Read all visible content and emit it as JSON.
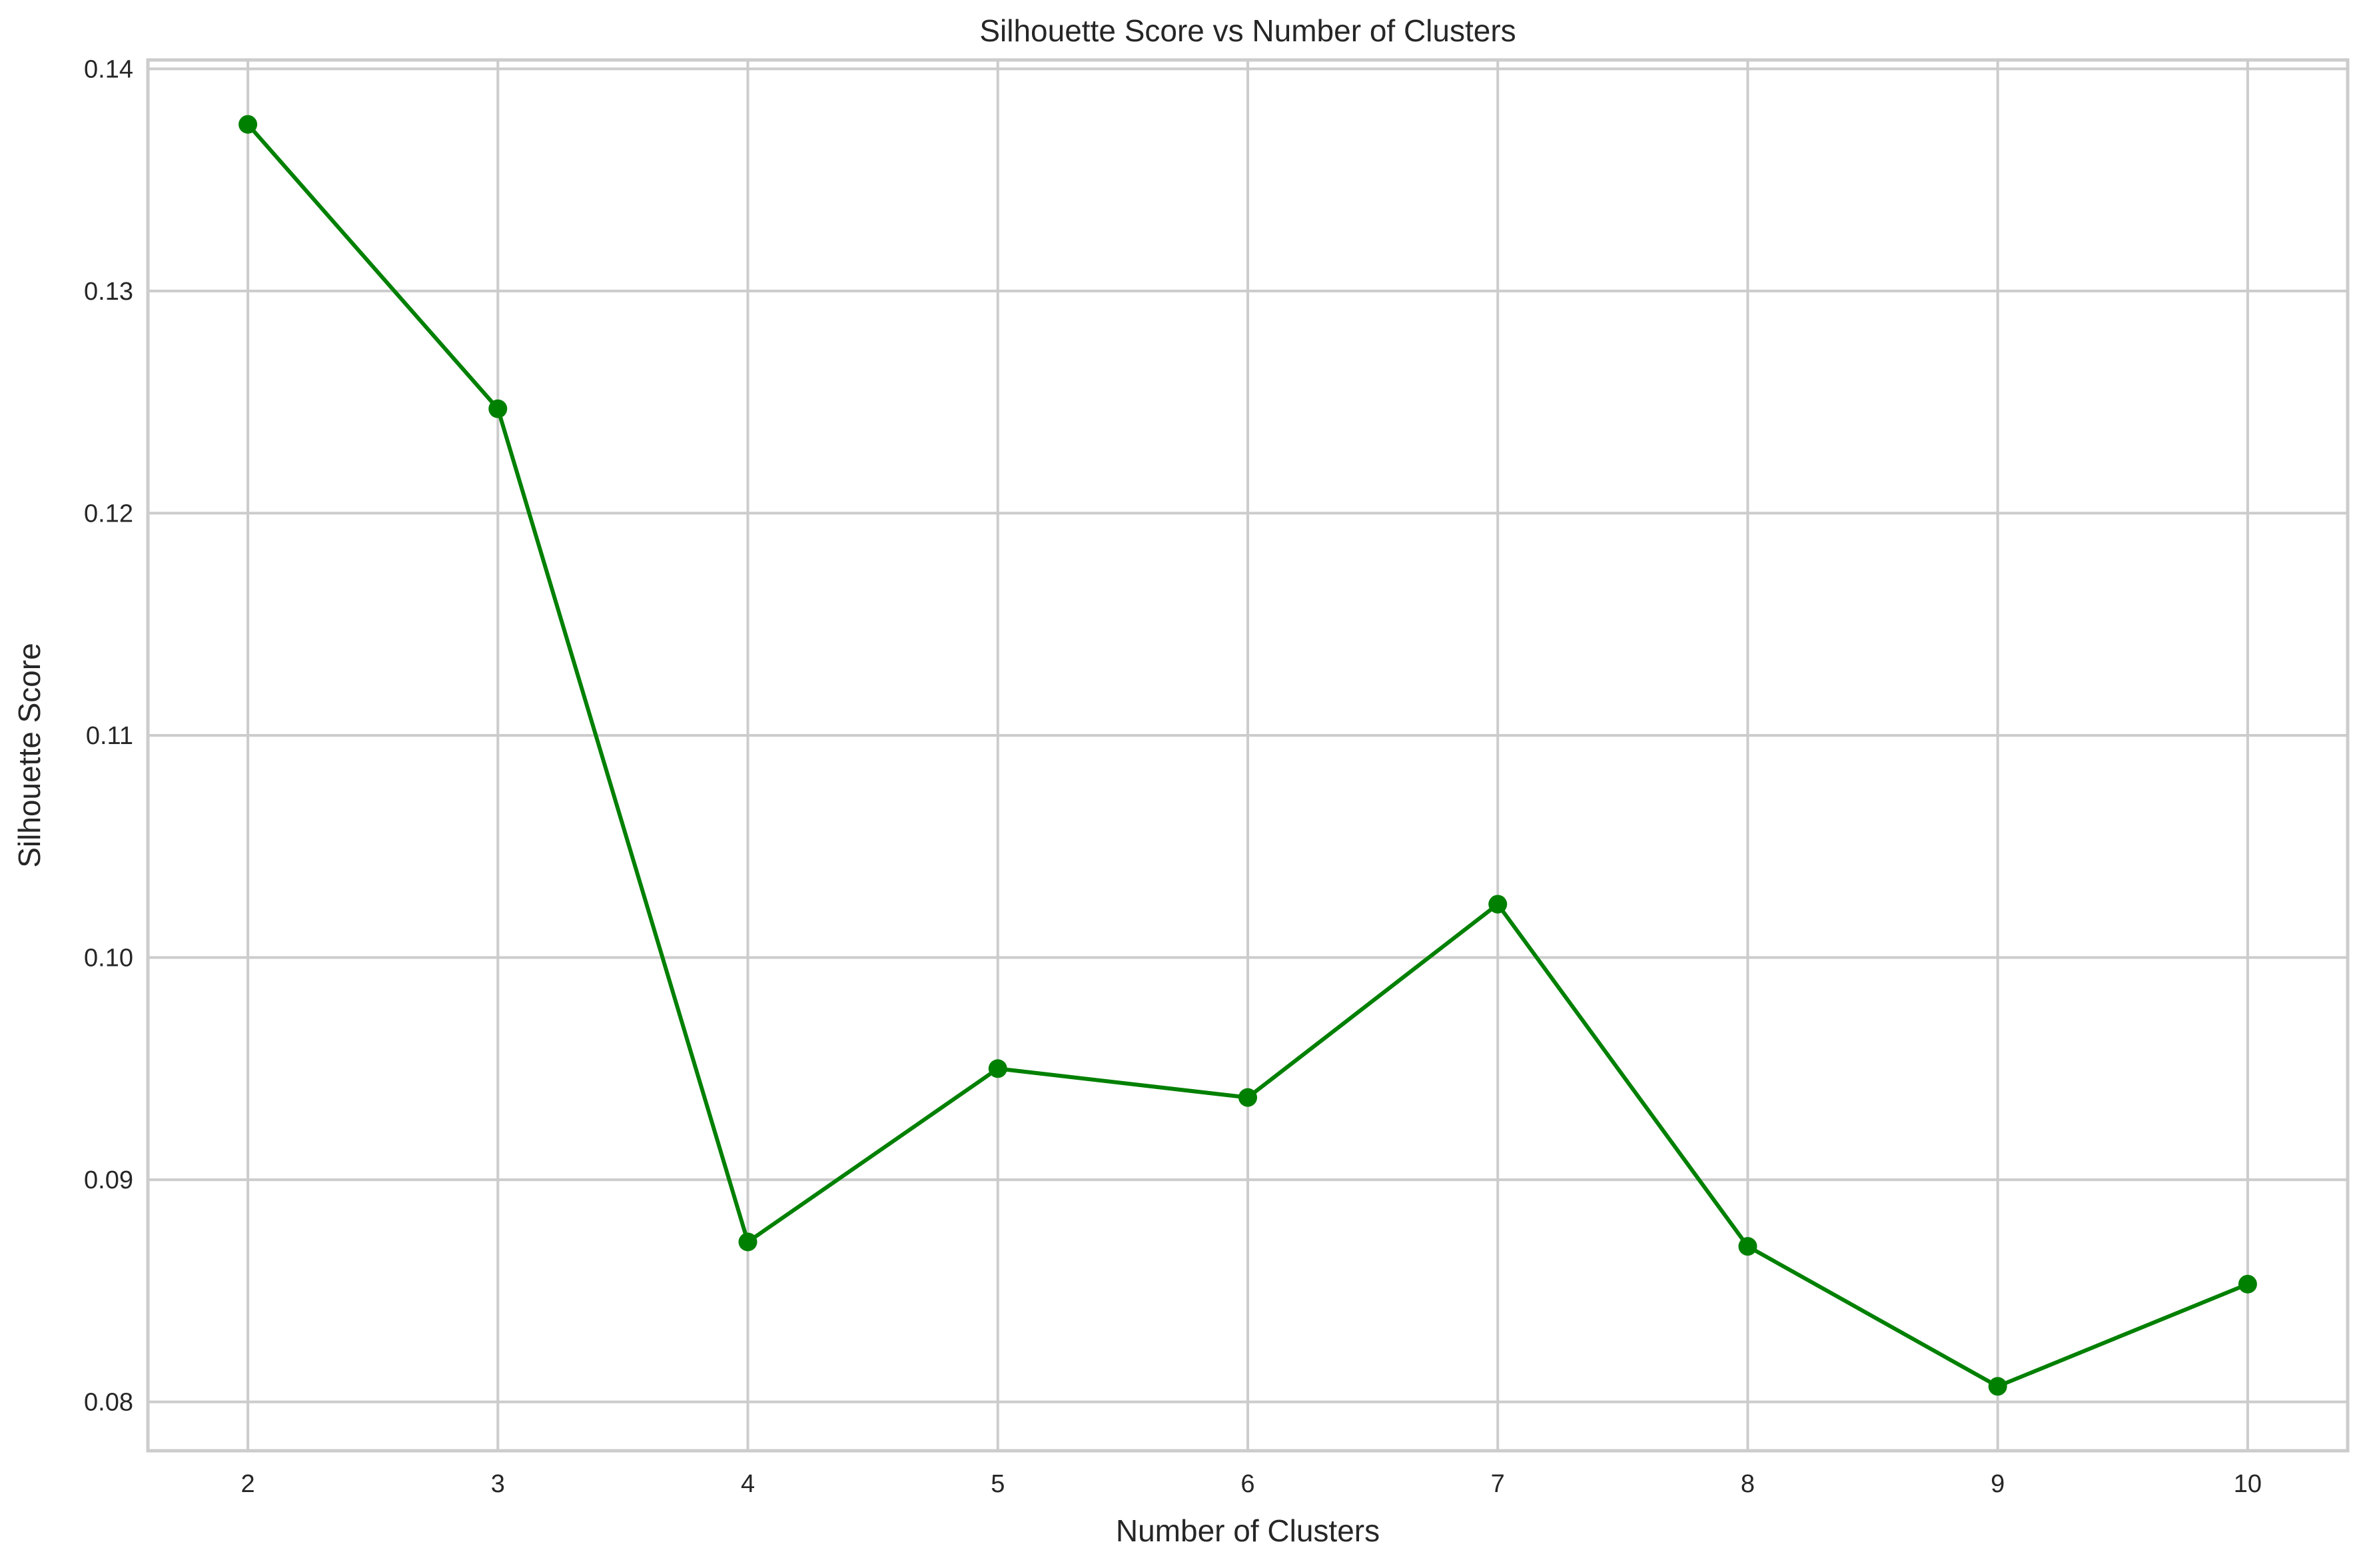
{
  "chart_data": {
    "type": "line",
    "title": "Silhouette Score vs Number of Clusters",
    "xlabel": "Number of Clusters",
    "ylabel": "Silhouette Score",
    "x": [
      2,
      3,
      4,
      5,
      6,
      7,
      8,
      9,
      10
    ],
    "series": [
      {
        "values": [
          0.1375,
          0.1247,
          0.0872,
          0.095,
          0.0937,
          0.1024,
          0.087,
          0.0807,
          0.0853
        ],
        "color": "#008000",
        "marker": "circle"
      }
    ],
    "xticks": [
      "2",
      "3",
      "4",
      "5",
      "6",
      "7",
      "8",
      "9",
      "10"
    ],
    "yticks": [
      "0.08",
      "0.09",
      "0.10",
      "0.11",
      "0.12",
      "0.13",
      "0.14"
    ],
    "ytick_values": [
      0.08,
      0.09,
      0.1,
      0.11,
      0.12,
      0.13,
      0.14
    ],
    "xlim": [
      1.6,
      10.4
    ],
    "ylim": [
      0.0778,
      0.1404
    ],
    "grid": true,
    "colors": {
      "line": "#008000",
      "grid": "#cccccc",
      "text": "#262626"
    }
  }
}
